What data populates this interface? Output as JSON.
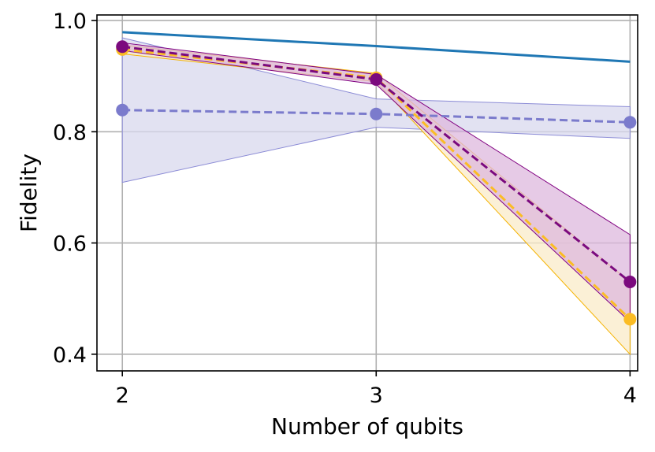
{
  "chart_data": {
    "type": "line",
    "title": "",
    "xlabel": "Number of qubits",
    "ylabel": "Fidelity",
    "x": [
      2,
      3,
      4
    ],
    "xlim": [
      1.9,
      4.03
    ],
    "ylim": [
      0.37,
      1.01
    ],
    "xticks": [
      2,
      3,
      4
    ],
    "yticks": [
      0.4,
      0.6,
      0.8,
      1.0
    ],
    "ytick_labels": [
      "0.4",
      "0.6",
      "0.8",
      "1.0"
    ],
    "grid": true,
    "legend": "none",
    "series": [
      {
        "color": "#1f77b4",
        "style": "solid",
        "markers": false,
        "values": [
          0.979,
          0.954,
          0.926
        ]
      },
      {
        "color": "#7b7bcc",
        "style": "dashed",
        "markers": true,
        "values": [
          0.839,
          0.832,
          0.817
        ],
        "band_low": [
          0.709,
          0.808,
          0.788
        ],
        "band_high": [
          0.969,
          0.859,
          0.845
        ],
        "band_fill": "#d8d8ee",
        "band_edge": "#8c8cd6"
      },
      {
        "color": "#fbbc24",
        "style": "dashed",
        "markers": true,
        "values": [
          0.948,
          0.897,
          0.463
        ],
        "band_low": [
          0.94,
          0.89,
          0.4
        ],
        "band_high": [
          0.956,
          0.905,
          0.53
        ],
        "band_fill": "#faebc8",
        "band_edge": "#f5b300"
      },
      {
        "color": "#7b0a7e",
        "style": "dashed",
        "markers": true,
        "values": [
          0.953,
          0.894,
          0.53
        ],
        "band_low": [
          0.946,
          0.885,
          0.458
        ],
        "band_high": [
          0.96,
          0.903,
          0.615
        ],
        "band_fill": "#ddb8dd",
        "band_edge": "#800080"
      }
    ]
  }
}
